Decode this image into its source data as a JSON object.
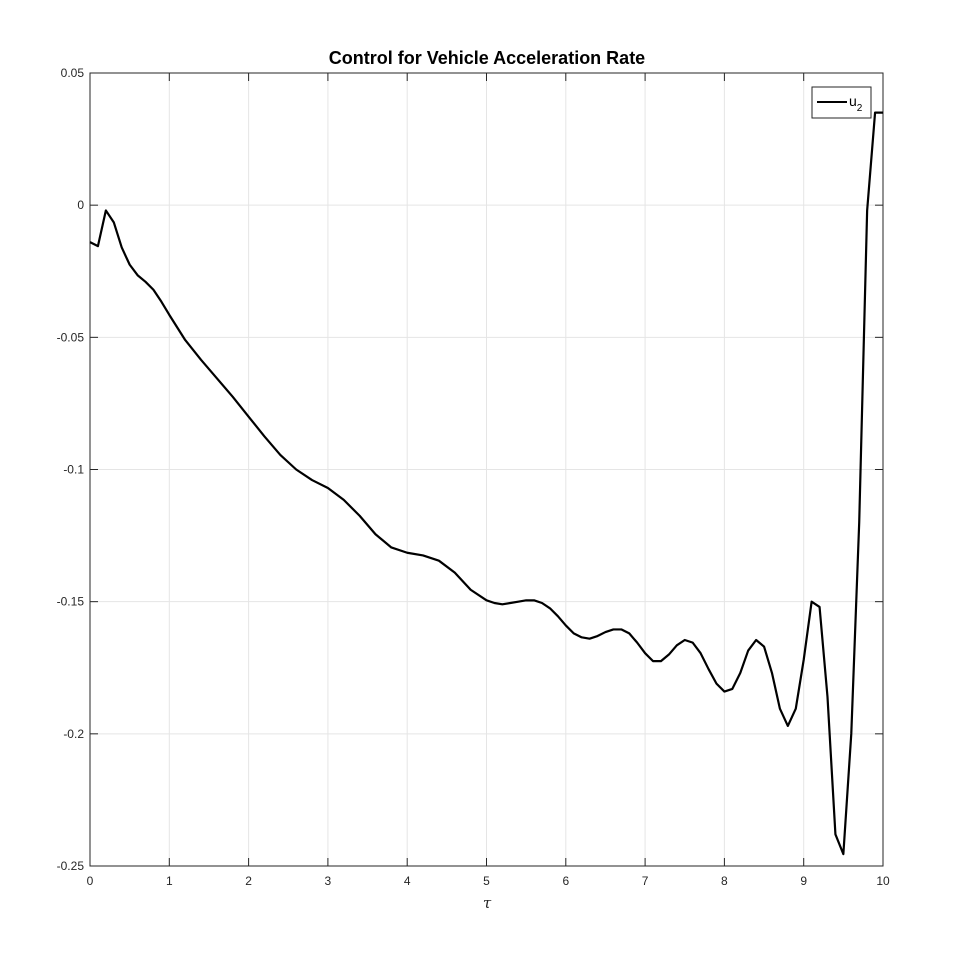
{
  "chart_data": {
    "type": "line",
    "title": "Control for Vehicle Acceleration Rate",
    "xlabel": "τ",
    "ylabel": "",
    "xlim": [
      0,
      10
    ],
    "ylim": [
      -0.25,
      0.05
    ],
    "xticks": [
      0,
      1,
      2,
      3,
      4,
      5,
      6,
      7,
      8,
      9,
      10
    ],
    "xtick_labels": [
      "0",
      "1",
      "2",
      "3",
      "4",
      "5",
      "6",
      "7",
      "8",
      "9",
      "10"
    ],
    "yticks": [
      0.05,
      0,
      -0.05,
      -0.1,
      -0.15,
      -0.2,
      -0.25
    ],
    "ytick_labels": [
      "0.05",
      "0",
      "-0.05",
      "-0.1",
      "-0.15",
      "-0.2",
      "-0.25"
    ],
    "grid": true,
    "legend_position": "top-right",
    "series": [
      {
        "name": "u",
        "name_subscript": "2",
        "color": "#000000",
        "x": [
          0,
          0.1,
          0.2,
          0.3,
          0.4,
          0.5,
          0.6,
          0.7,
          0.8,
          0.9,
          1.0,
          1.2,
          1.4,
          1.6,
          1.8,
          2.0,
          2.2,
          2.4,
          2.6,
          2.8,
          3.0,
          3.2,
          3.4,
          3.6,
          3.8,
          4.0,
          4.2,
          4.4,
          4.6,
          4.8,
          5.0,
          5.1,
          5.2,
          5.3,
          5.4,
          5.5,
          5.6,
          5.7,
          5.8,
          5.9,
          6.0,
          6.1,
          6.2,
          6.3,
          6.4,
          6.5,
          6.6,
          6.7,
          6.8,
          6.9,
          7.0,
          7.1,
          7.2,
          7.3,
          7.4,
          7.5,
          7.6,
          7.7,
          7.8,
          7.9,
          8.0,
          8.1,
          8.2,
          8.3,
          8.4,
          8.5,
          8.6,
          8.7,
          8.8,
          8.9,
          9.0,
          9.1,
          9.2,
          9.3,
          9.4,
          9.5,
          9.6,
          9.7,
          9.8,
          9.9,
          10.0
        ],
        "y": [
          -0.014,
          -0.0155,
          -0.002,
          -0.0065,
          -0.016,
          -0.0225,
          -0.0265,
          -0.029,
          -0.032,
          -0.0365,
          -0.0415,
          -0.051,
          -0.0585,
          -0.0655,
          -0.0725,
          -0.08,
          -0.0875,
          -0.0945,
          -0.1,
          -0.104,
          -0.107,
          -0.1115,
          -0.1175,
          -0.1245,
          -0.1295,
          -0.1315,
          -0.1325,
          -0.1345,
          -0.139,
          -0.1455,
          -0.1495,
          -0.1505,
          -0.151,
          -0.1505,
          -0.15,
          -0.1495,
          -0.1495,
          -0.1505,
          -0.1525,
          -0.1555,
          -0.159,
          -0.162,
          -0.1635,
          -0.164,
          -0.163,
          -0.1615,
          -0.1605,
          -0.1605,
          -0.162,
          -0.1655,
          -0.1695,
          -0.1725,
          -0.1725,
          -0.17,
          -0.1665,
          -0.1645,
          -0.1655,
          -0.1695,
          -0.1755,
          -0.181,
          -0.184,
          -0.183,
          -0.177,
          -0.1685,
          -0.1645,
          -0.167,
          -0.177,
          -0.1905,
          -0.197,
          -0.1905,
          -0.172,
          -0.15,
          -0.152,
          -0.186,
          -0.238,
          -0.2455,
          -0.2,
          -0.12,
          -0.002,
          0.035,
          0.035
        ]
      }
    ]
  }
}
